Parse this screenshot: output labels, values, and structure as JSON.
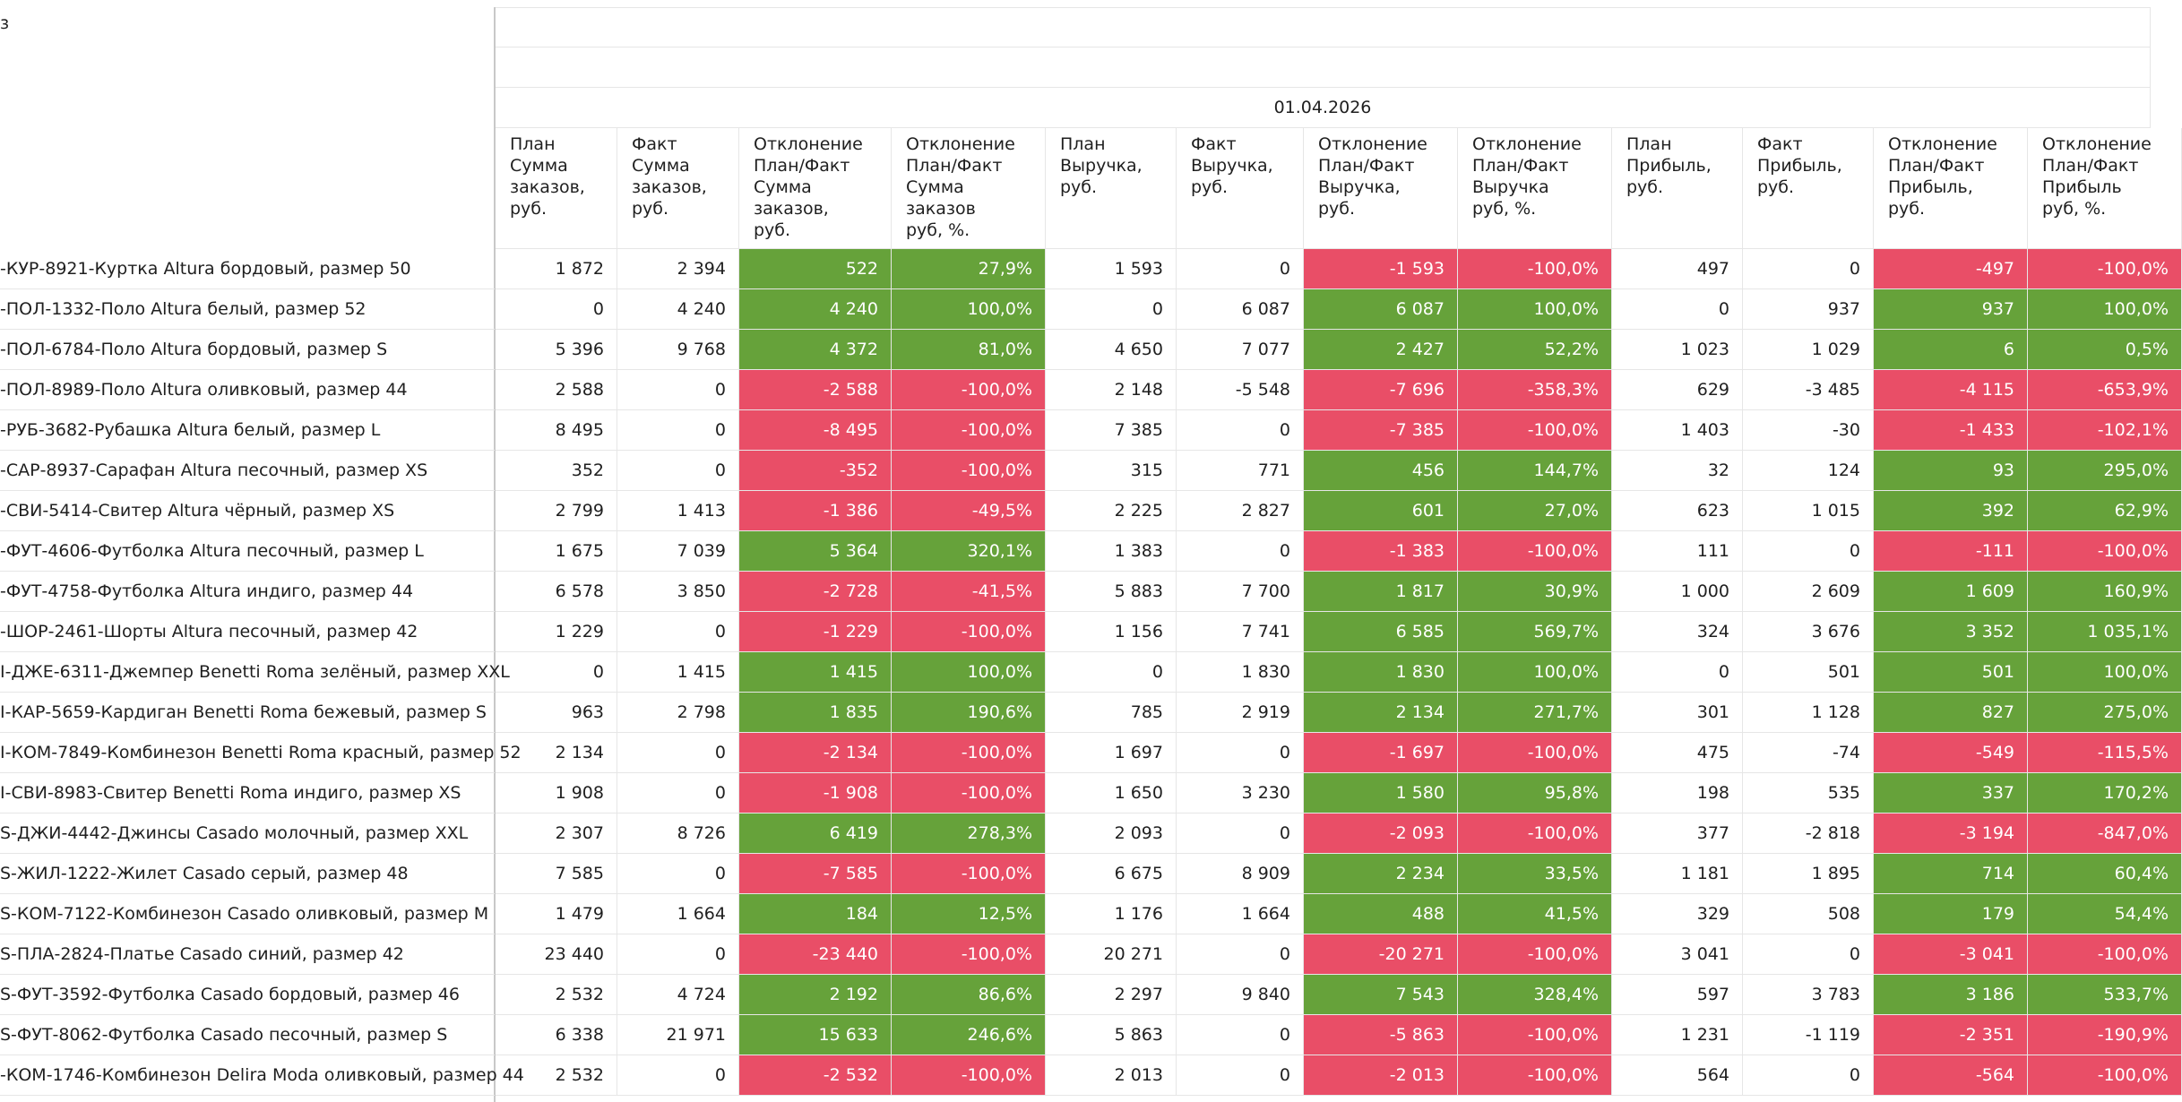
{
  "top_left_label": "з",
  "date_header": "01.04.2026",
  "columns": [
    {
      "label": "План\nСумма\nзаказов,\nруб."
    },
    {
      "label": "Факт\nСумма\nзаказов,\nруб."
    },
    {
      "label": "Отклонение\nПлан/Факт\nСумма\nзаказов,\nруб."
    },
    {
      "label": "Отклонение\nПлан/Факт\nСумма\nзаказов\nруб, %."
    },
    {
      "label": "План\nВыручка,\nруб."
    },
    {
      "label": "Факт\nВыручка,\nруб."
    },
    {
      "label": "Отклонение\nПлан/Факт\nВыручка,\nруб."
    },
    {
      "label": "Отклонение\nПлан/Факт\nВыручка\nруб, %."
    },
    {
      "label": "План\nПрибыль,\nруб."
    },
    {
      "label": "Факт\nПрибыль,\nруб."
    },
    {
      "label": "Отклонение\nПлан/Факт\nПрибыль,\nруб."
    },
    {
      "label": "Отклонение\nПлан/Факт\nПрибыль\nруб, %."
    }
  ],
  "rows": [
    {
      "name": "-КУР-8921-Куртка Altura бордовый, размер 50",
      "values": [
        "1 872",
        "2 394",
        "522",
        "27,9%",
        "1 593",
        "0",
        "-1 593",
        "-100,0%",
        "497",
        "0",
        "-497",
        "-100,0%"
      ],
      "signs": [
        "",
        "",
        "pos",
        "pos",
        "",
        "",
        "neg",
        "neg",
        "",
        "",
        "neg",
        "neg"
      ]
    },
    {
      "name": "-ПОЛ-1332-Поло Altura белый, размер 52",
      "values": [
        "0",
        "4 240",
        "4 240",
        "100,0%",
        "0",
        "6 087",
        "6 087",
        "100,0%",
        "0",
        "937",
        "937",
        "100,0%"
      ],
      "signs": [
        "",
        "",
        "pos",
        "pos",
        "",
        "",
        "pos",
        "pos",
        "",
        "",
        "pos",
        "pos"
      ]
    },
    {
      "name": "-ПОЛ-6784-Поло Altura бордовый, размер S",
      "values": [
        "5 396",
        "9 768",
        "4 372",
        "81,0%",
        "4 650",
        "7 077",
        "2 427",
        "52,2%",
        "1 023",
        "1 029",
        "6",
        "0,5%"
      ],
      "signs": [
        "",
        "",
        "pos",
        "pos",
        "",
        "",
        "pos",
        "pos",
        "",
        "",
        "pos",
        "pos"
      ]
    },
    {
      "name": "-ПОЛ-8989-Поло Altura оливковый, размер 44",
      "values": [
        "2 588",
        "0",
        "-2 588",
        "-100,0%",
        "2 148",
        "-5 548",
        "-7 696",
        "-358,3%",
        "629",
        "-3 485",
        "-4 115",
        "-653,9%"
      ],
      "signs": [
        "",
        "",
        "neg",
        "neg",
        "",
        "",
        "neg",
        "neg",
        "",
        "",
        "neg",
        "neg"
      ]
    },
    {
      "name": "-РУБ-3682-Рубашка Altura белый, размер L",
      "values": [
        "8 495",
        "0",
        "-8 495",
        "-100,0%",
        "7 385",
        "0",
        "-7 385",
        "-100,0%",
        "1 403",
        "-30",
        "-1 433",
        "-102,1%"
      ],
      "signs": [
        "",
        "",
        "neg",
        "neg",
        "",
        "",
        "neg",
        "neg",
        "",
        "",
        "neg",
        "neg"
      ]
    },
    {
      "name": "-САР-8937-Сарафан Altura песочный, размер XS",
      "values": [
        "352",
        "0",
        "-352",
        "-100,0%",
        "315",
        "771",
        "456",
        "144,7%",
        "32",
        "124",
        "93",
        "295,0%"
      ],
      "signs": [
        "",
        "",
        "neg",
        "neg",
        "",
        "",
        "pos",
        "pos",
        "",
        "",
        "pos",
        "pos"
      ]
    },
    {
      "name": "-СВИ-5414-Свитер Altura чёрный, размер XS",
      "values": [
        "2 799",
        "1 413",
        "-1 386",
        "-49,5%",
        "2 225",
        "2 827",
        "601",
        "27,0%",
        "623",
        "1 015",
        "392",
        "62,9%"
      ],
      "signs": [
        "",
        "",
        "neg",
        "neg",
        "",
        "",
        "pos",
        "pos",
        "",
        "",
        "pos",
        "pos"
      ]
    },
    {
      "name": "-ФУТ-4606-Футболка Altura песочный, размер L",
      "values": [
        "1 675",
        "7 039",
        "5 364",
        "320,1%",
        "1 383",
        "0",
        "-1 383",
        "-100,0%",
        "111",
        "0",
        "-111",
        "-100,0%"
      ],
      "signs": [
        "",
        "",
        "pos",
        "pos",
        "",
        "",
        "neg",
        "neg",
        "",
        "",
        "neg",
        "neg"
      ]
    },
    {
      "name": "-ФУТ-4758-Футболка Altura индиго, размер 44",
      "values": [
        "6 578",
        "3 850",
        "-2 728",
        "-41,5%",
        "5 883",
        "7 700",
        "1 817",
        "30,9%",
        "1 000",
        "2 609",
        "1 609",
        "160,9%"
      ],
      "signs": [
        "",
        "",
        "neg",
        "neg",
        "",
        "",
        "pos",
        "pos",
        "",
        "",
        "pos",
        "pos"
      ]
    },
    {
      "name": "-ШОР-2461-Шорты Altura песочный, размер 42",
      "values": [
        "1 229",
        "0",
        "-1 229",
        "-100,0%",
        "1 156",
        "7 741",
        "6 585",
        "569,7%",
        "324",
        "3 676",
        "3 352",
        "1 035,1%"
      ],
      "signs": [
        "",
        "",
        "neg",
        "neg",
        "",
        "",
        "pos",
        "pos",
        "",
        "",
        "pos",
        "pos"
      ]
    },
    {
      "name": "I-ДЖЕ-6311-Джемпер Benetti Roma зелёный, размер XXL",
      "values": [
        "0",
        "1 415",
        "1 415",
        "100,0%",
        "0",
        "1 830",
        "1 830",
        "100,0%",
        "0",
        "501",
        "501",
        "100,0%"
      ],
      "signs": [
        "",
        "",
        "pos",
        "pos",
        "",
        "",
        "pos",
        "pos",
        "",
        "",
        "pos",
        "pos"
      ]
    },
    {
      "name": "I-КАР-5659-Кардиган Benetti Roma бежевый, размер S",
      "values": [
        "963",
        "2 798",
        "1 835",
        "190,6%",
        "785",
        "2 919",
        "2 134",
        "271,7%",
        "301",
        "1 128",
        "827",
        "275,0%"
      ],
      "signs": [
        "",
        "",
        "pos",
        "pos",
        "",
        "",
        "pos",
        "pos",
        "",
        "",
        "pos",
        "pos"
      ]
    },
    {
      "name": "I-КОМ-7849-Комбинезон Benetti Roma красный, размер 52",
      "values": [
        "2 134",
        "0",
        "-2 134",
        "-100,0%",
        "1 697",
        "0",
        "-1 697",
        "-100,0%",
        "475",
        "-74",
        "-549",
        "-115,5%"
      ],
      "signs": [
        "",
        "",
        "neg",
        "neg",
        "",
        "",
        "neg",
        "neg",
        "",
        "",
        "neg",
        "neg"
      ]
    },
    {
      "name": "I-СВИ-8983-Свитер Benetti Roma индиго, размер XS",
      "values": [
        "1 908",
        "0",
        "-1 908",
        "-100,0%",
        "1 650",
        "3 230",
        "1 580",
        "95,8%",
        "198",
        "535",
        "337",
        "170,2%"
      ],
      "signs": [
        "",
        "",
        "neg",
        "neg",
        "",
        "",
        "pos",
        "pos",
        "",
        "",
        "pos",
        "pos"
      ]
    },
    {
      "name": "S-ДЖИ-4442-Джинсы Casado молочный, размер XXL",
      "values": [
        "2 307",
        "8 726",
        "6 419",
        "278,3%",
        "2 093",
        "0",
        "-2 093",
        "-100,0%",
        "377",
        "-2 818",
        "-3 194",
        "-847,0%"
      ],
      "signs": [
        "",
        "",
        "pos",
        "pos",
        "",
        "",
        "neg",
        "neg",
        "",
        "",
        "neg",
        "neg"
      ]
    },
    {
      "name": "S-ЖИЛ-1222-Жилет Casado серый, размер 48",
      "values": [
        "7 585",
        "0",
        "-7 585",
        "-100,0%",
        "6 675",
        "8 909",
        "2 234",
        "33,5%",
        "1 181",
        "1 895",
        "714",
        "60,4%"
      ],
      "signs": [
        "",
        "",
        "neg",
        "neg",
        "",
        "",
        "pos",
        "pos",
        "",
        "",
        "pos",
        "pos"
      ]
    },
    {
      "name": "S-КОМ-7122-Комбинезон Casado оливковый, размер M",
      "values": [
        "1 479",
        "1 664",
        "184",
        "12,5%",
        "1 176",
        "1 664",
        "488",
        "41,5%",
        "329",
        "508",
        "179",
        "54,4%"
      ],
      "signs": [
        "",
        "",
        "pos",
        "pos",
        "",
        "",
        "pos",
        "pos",
        "",
        "",
        "pos",
        "pos"
      ]
    },
    {
      "name": "S-ПЛА-2824-Платье Casado синий, размер 42",
      "values": [
        "23 440",
        "0",
        "-23 440",
        "-100,0%",
        "20 271",
        "0",
        "-20 271",
        "-100,0%",
        "3 041",
        "0",
        "-3 041",
        "-100,0%"
      ],
      "signs": [
        "",
        "",
        "neg",
        "neg",
        "",
        "",
        "neg",
        "neg",
        "",
        "",
        "neg",
        "neg"
      ]
    },
    {
      "name": "S-ФУТ-3592-Футболка Casado бордовый, размер 46",
      "values": [
        "2 532",
        "4 724",
        "2 192",
        "86,6%",
        "2 297",
        "9 840",
        "7 543",
        "328,4%",
        "597",
        "3 783",
        "3 186",
        "533,7%"
      ],
      "signs": [
        "",
        "",
        "pos",
        "pos",
        "",
        "",
        "pos",
        "pos",
        "",
        "",
        "pos",
        "pos"
      ]
    },
    {
      "name": "S-ФУТ-8062-Футболка Casado песочный, размер S",
      "values": [
        "6 338",
        "21 971",
        "15 633",
        "246,6%",
        "5 863",
        "0",
        "-5 863",
        "-100,0%",
        "1 231",
        "-1 119",
        "-2 351",
        "-190,9%"
      ],
      "signs": [
        "",
        "",
        "pos",
        "pos",
        "",
        "",
        "neg",
        "neg",
        "",
        "",
        "neg",
        "neg"
      ]
    },
    {
      "name": "-КОМ-1746-Комбинезон Delira Moda оливковый, размер 44",
      "values": [
        "2 532",
        "0",
        "-2 532",
        "-100,0%",
        "2 013",
        "0",
        "-2 013",
        "-100,0%",
        "564",
        "0",
        "-564",
        "-100,0%"
      ],
      "signs": [
        "",
        "",
        "neg",
        "neg",
        "",
        "",
        "neg",
        "neg",
        "",
        "",
        "neg",
        "neg"
      ]
    }
  ],
  "colors": {
    "positive": "#66a23a",
    "negative": "#e94e67",
    "grid": "#e6e6e6"
  }
}
